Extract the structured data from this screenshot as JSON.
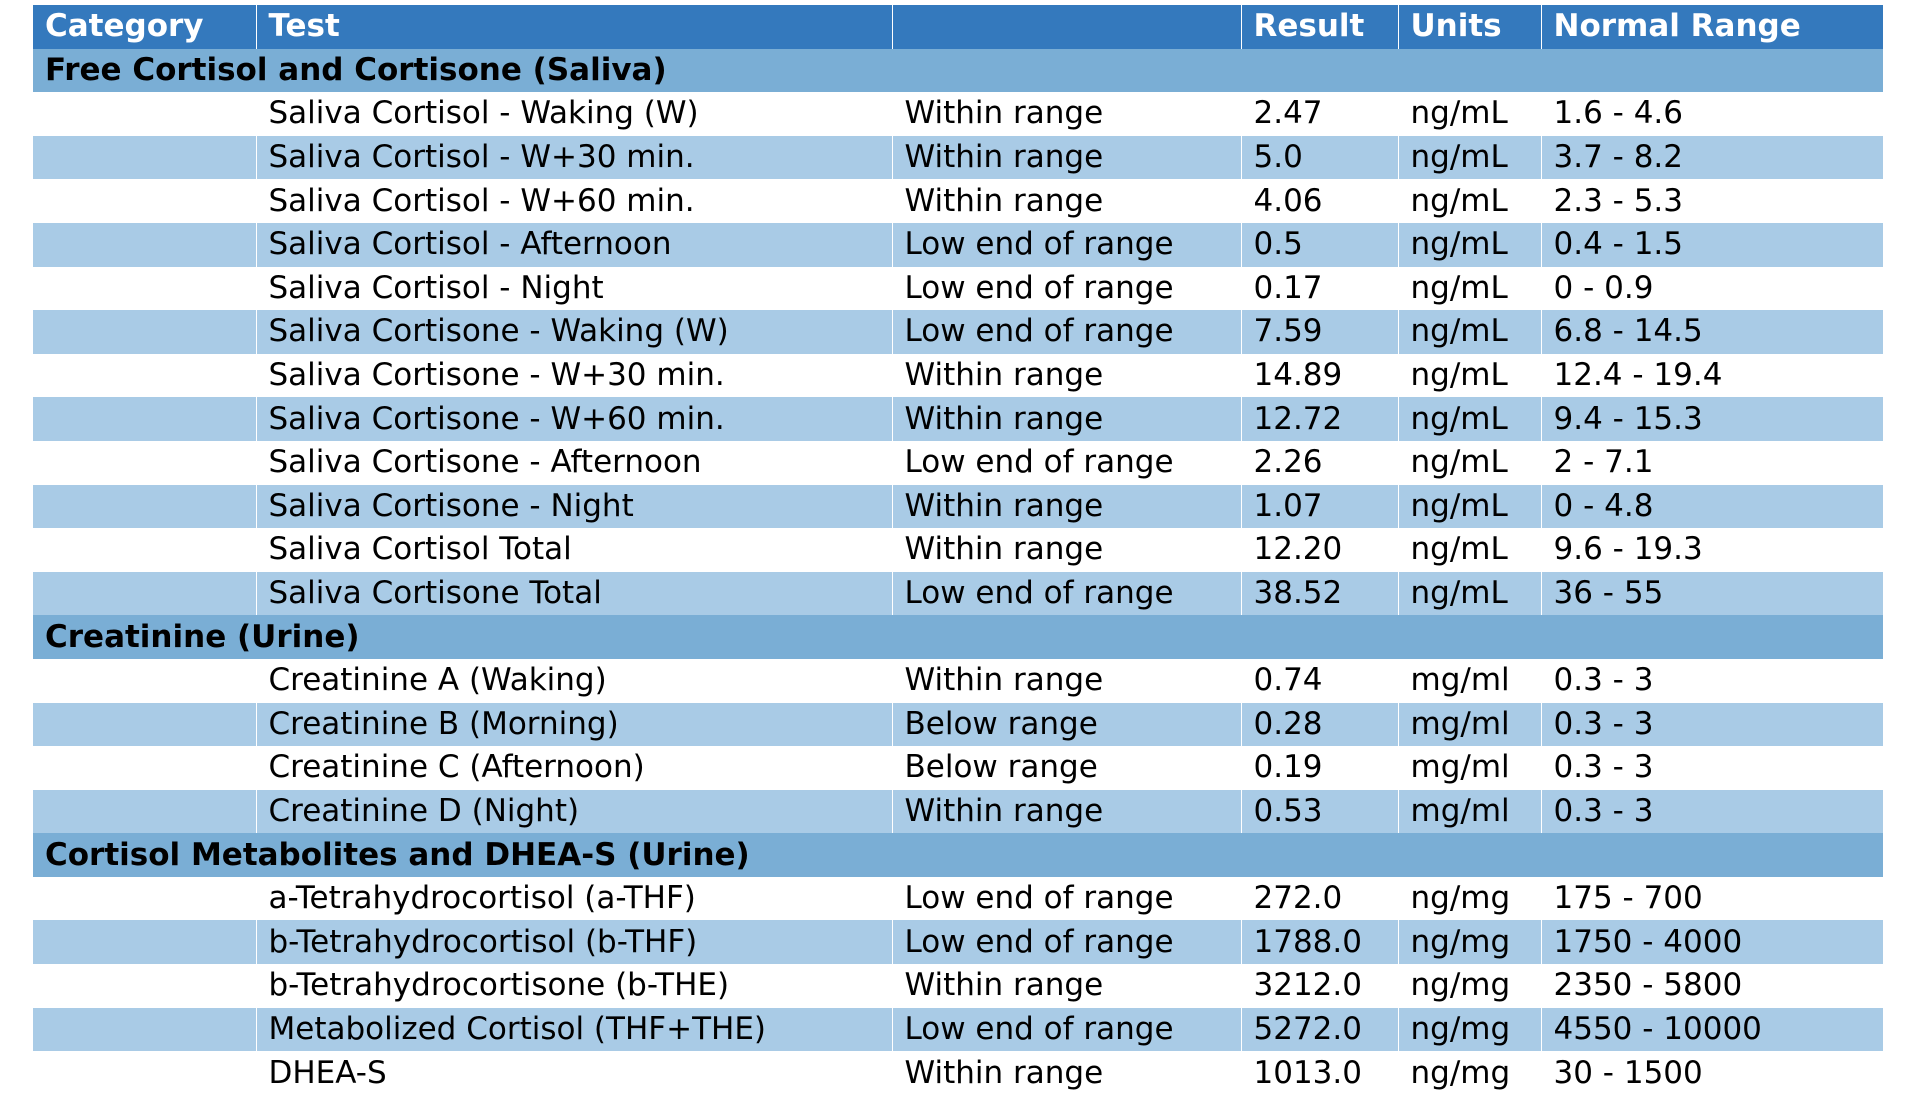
{
  "table": {
    "header": [
      "Category",
      "Test",
      "",
      "Result",
      "Units",
      "Normal Range"
    ],
    "sections": [
      {
        "name": "Free Cortisol and Cortisone (Saliva)",
        "rows": [
          [
            "Saliva Cortisol - Waking (W)",
            "Within range",
            "2.47",
            "ng/mL",
            "1.6 - 4.6"
          ],
          [
            "Saliva Cortisol - W+30 min.",
            "Within range",
            "5.0",
            "ng/mL",
            "3.7 - 8.2"
          ],
          [
            "Saliva Cortisol - W+60 min.",
            "Within range",
            "4.06",
            "ng/mL",
            "2.3 - 5.3"
          ],
          [
            "Saliva Cortisol - Afternoon",
            "Low end of range",
            "0.5",
            "ng/mL",
            "0.4 - 1.5"
          ],
          [
            "Saliva Cortisol - Night",
            "Low end of range",
            "0.17",
            "ng/mL",
            "0 - 0.9"
          ],
          [
            "Saliva Cortisone - Waking (W)",
            "Low end of range",
            "7.59",
            "ng/mL",
            "6.8 - 14.5"
          ],
          [
            "Saliva Cortisone - W+30 min.",
            "Within range",
            "14.89",
            "ng/mL",
            "12.4 - 19.4"
          ],
          [
            "Saliva Cortisone - W+60 min.",
            "Within range",
            "12.72",
            "ng/mL",
            "9.4 - 15.3"
          ],
          [
            "Saliva Cortisone - Afternoon",
            "Low end of range",
            "2.26",
            "ng/mL",
            "2 - 7.1"
          ],
          [
            "Saliva Cortisone - Night",
            "Within range",
            "1.07",
            "ng/mL",
            "0 - 4.8"
          ],
          [
            "Saliva Cortisol Total",
            "Within range",
            "12.20",
            "ng/mL",
            "9.6 - 19.3"
          ],
          [
            "Saliva Cortisone Total",
            "Low end of range",
            "38.52",
            "ng/mL",
            "36 - 55"
          ]
        ]
      },
      {
        "name": "Creatinine (Urine)",
        "rows": [
          [
            "Creatinine A (Waking)",
            "Within range",
            "0.74",
            "mg/ml",
            "0.3 - 3"
          ],
          [
            "Creatinine B (Morning)",
            "Below range",
            "0.28",
            "mg/ml",
            "0.3 - 3"
          ],
          [
            "Creatinine C (Afternoon)",
            "Below range",
            "0.19",
            "mg/ml",
            "0.3 - 3"
          ],
          [
            "Creatinine D (Night)",
            "Within range",
            "0.53",
            "mg/ml",
            "0.3 - 3"
          ]
        ]
      },
      {
        "name": "Cortisol Metabolites and DHEA-S (Urine)",
        "rows": [
          [
            "a-Tetrahydrocortisol (a-THF)",
            "Low end of range",
            "272.0",
            "ng/mg",
            "175 - 700"
          ],
          [
            "b-Tetrahydrocortisol (b-THF)",
            "Low end of range",
            "1788.0",
            "ng/mg",
            "1750 - 4000"
          ],
          [
            "b-Tetrahydrocortisone (b-THE)",
            "Within range",
            "3212.0",
            "ng/mg",
            "2350 - 5800"
          ],
          [
            "Metabolized Cortisol (THF+THE)",
            "Low end of range",
            "5272.0",
            "ng/mg",
            "4550 - 10000"
          ],
          [
            "DHEA-S",
            "Within range",
            "1013.0",
            "ng/mg",
            "30 - 1500"
          ]
        ]
      }
    ]
  }
}
